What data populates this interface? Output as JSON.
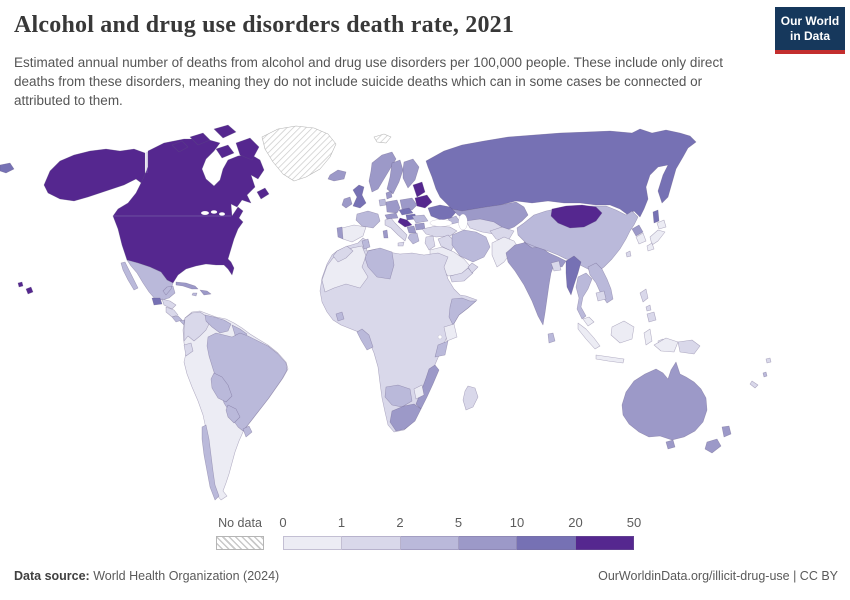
{
  "header": {
    "title": "Alcohol and drug use disorders death rate, 2021",
    "subtitle": "Estimated annual number of deaths from alcohol and drug use disorders per 100,000 people. These include only direct deaths from these disorders, meaning they do not include suicide deaths which can in some cases be connected or attributed to them.",
    "logo": {
      "line1": "Our World",
      "line2": "in Data",
      "bg_color": "#16385c",
      "accent_color": "#c32e2e"
    }
  },
  "legend": {
    "no_data_label": "No data",
    "tick_labels": [
      "0",
      "1",
      "2",
      "5",
      "10",
      "20",
      "50"
    ]
  },
  "footer": {
    "source_label": "Data source:",
    "source_text": " World Health Organization (2024)",
    "credit": "OurWorldinData.org/illicit-drug-use | CC BY"
  },
  "chart_data": {
    "type": "choropleth_map",
    "title": "Alcohol and drug use disorders death rate, 2021",
    "unit": "deaths per 100,000 people",
    "year": 2021,
    "projection": "world",
    "legend": {
      "no_data_label": "No data",
      "no_data_pattern": "diagonal-hatch",
      "bin_edges": [
        0,
        1,
        2,
        5,
        10,
        20,
        50
      ],
      "bin_colors": [
        "#ececf4",
        "#d9d8ea",
        "#bab9da",
        "#9c99c8",
        "#7671b4",
        "#55278f"
      ]
    },
    "regions": {
      "usa": 5,
      "canada": 5,
      "hawaii": 5,
      "greenland": "no_data",
      "svalbard": "no_data",
      "chukotka-fragment": 4,
      "mexico": 2,
      "guatemala": 4,
      "honduras": 1,
      "nicaragua": 1,
      "costa-rica": 2,
      "panama": 2,
      "cuba": 3,
      "hispaniola": 3,
      "jamaica": 2,
      "colombia": 1,
      "venezuela": 2,
      "guyanas": 2,
      "ecuador": 1,
      "south-america-base": 0,
      "brazil": 2,
      "bolivia": 2,
      "paraguay": 2,
      "uruguay": 2,
      "chile": 2,
      "iceland": 3,
      "ireland": 3,
      "uk": 4,
      "portugal": 3,
      "spain": 0,
      "france": 2,
      "benelux": 2,
      "germany": 3,
      "denmark": 3,
      "norway": 3,
      "sweden": 3,
      "finland": 3,
      "poland": 3,
      "czechia-slovakia": 4,
      "austria-switzerland": 3,
      "hungary": 4,
      "croatia-slovenia": 5,
      "serbia-bosnia": 3,
      "greece": 2,
      "romania": 2,
      "bulgaria": 3,
      "italy": 1,
      "sardinia": 3,
      "sicily": 1,
      "baltic-states": 5,
      "belarus": 5,
      "ukraine": 4,
      "russia": 4,
      "kazakhstan": 3,
      "caucasus": 2,
      "central-asia": 1,
      "turkey": 1,
      "levant": 1,
      "iraq": 1,
      "iran": 2,
      "saudi-arabia": 0,
      "yemen": 1,
      "oman": 1,
      "afghanistan": 1,
      "pakistan": 0,
      "india": 3,
      "nepal": 2,
      "bangladesh": 1,
      "sri-lanka": 2,
      "myanmar": 4,
      "thailand": 2,
      "laos-vietnam": 2,
      "cambodia": 1,
      "malaysia": 0,
      "indonesia": 0,
      "west-papua": 0,
      "papua-new-guinea": 1,
      "philippines": 1,
      "china": 2,
      "mongolia": 5,
      "north-korea": 3,
      "south-korea": 0,
      "japan": 0,
      "taiwan": 1,
      "africa-base": 1,
      "northwest-africa": 0,
      "morocco": 1,
      "tunisia": 2,
      "libya": 2,
      "sierra-leone": 2,
      "cameroon-congo": 2,
      "kenya": 0,
      "somalia": 2,
      "tanzania": 2,
      "zimbabwe": 0,
      "namibia-botswana": 2,
      "mozambique": 3,
      "south-africa": 3,
      "madagascar": 1,
      "australia": 3,
      "tasmania": 3,
      "new-zealand": 3,
      "fiji": 1,
      "vanuatu": 2,
      "new-caledonia": 1
    }
  }
}
